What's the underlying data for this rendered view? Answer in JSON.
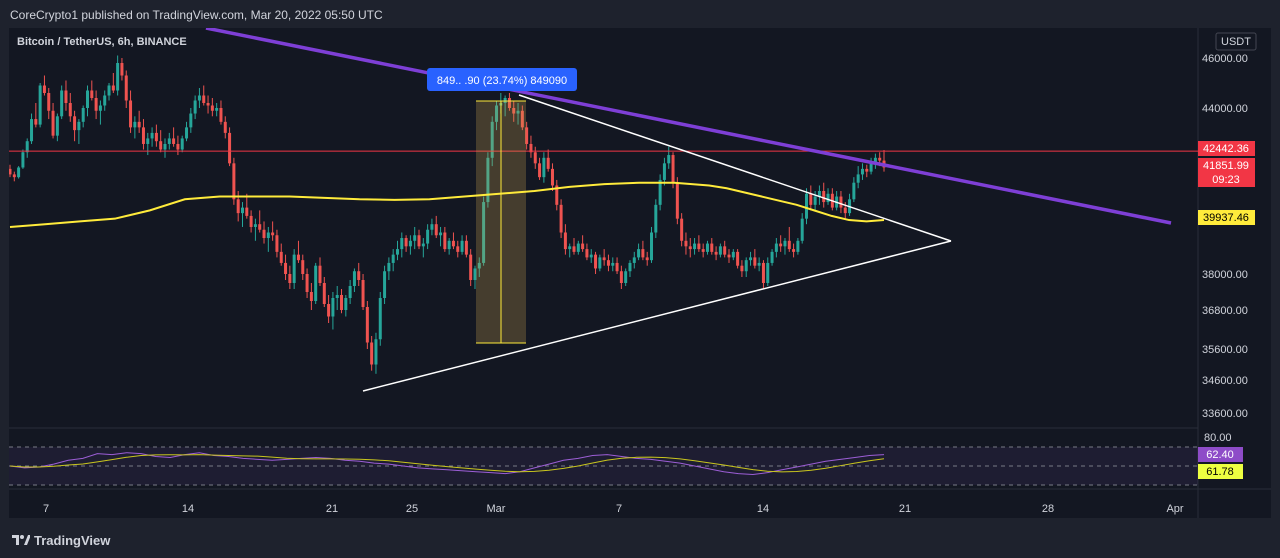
{
  "publish_info": "CoreCrypto1 published on TradingView.com, Mar 20, 2022 05:50 UTC",
  "brand": "TradingView",
  "chart_data": {
    "type": "candlestick",
    "title": "Bitcoin / TetherUS, 6h, BINANCE",
    "currency": "USDT",
    "y_ticks": [
      "46000.00",
      "44000.00",
      "38000.00",
      "36800.00",
      "35600.00",
      "34600.00",
      "33600.00"
    ],
    "x_ticks": [
      "7",
      "14",
      "21",
      "25",
      "Mar",
      "7",
      "14",
      "21",
      "28",
      "Apr"
    ],
    "price_badges": [
      {
        "value": "42442.36",
        "bg": "#f23645",
        "fg": "#ffffff"
      },
      {
        "value": "41851.99",
        "bg": "#f23645",
        "fg": "#ffffff"
      },
      {
        "value": "09:23",
        "bg": "#f23645",
        "fg": "#ffffff"
      },
      {
        "value": "39937.46",
        "bg": "#ffeb3b",
        "fg": "#000000"
      }
    ],
    "measure_label": "849.. .90 (23.74%) 849090",
    "horizontal_line": 42442.36,
    "colors": {
      "up": "#26a69a",
      "down": "#ef5350",
      "ma": "#ffeb3b",
      "trendline": "#7e3fd6",
      "triangle": "#ffffff",
      "rsi": "#9c5ed6",
      "rsi_ma": "#c9c61e",
      "measure_bg": "#2962ff",
      "hline": "#f23645"
    },
    "rsi": {
      "levels": [
        "80.00"
      ],
      "badges": [
        {
          "value": "62.40",
          "bg": "#8e4cc8",
          "fg": "#ffffff"
        },
        {
          "value": "61.78",
          "bg": "#eeff41",
          "fg": "#000000"
        }
      ]
    },
    "candles": [
      [
        41800,
        41950,
        41500,
        41600
      ],
      [
        41600,
        41700,
        41350,
        41500
      ],
      [
        41500,
        41900,
        41450,
        41850
      ],
      [
        41850,
        42500,
        41800,
        42400
      ],
      [
        42400,
        42900,
        42200,
        42800
      ],
      [
        42800,
        43800,
        42700,
        43600
      ],
      [
        43600,
        44200,
        43300,
        43400
      ],
      [
        43400,
        45000,
        43300,
        44900
      ],
      [
        44900,
        45300,
        44500,
        44600
      ],
      [
        44600,
        44800,
        43600,
        43900
      ],
      [
        43900,
        44200,
        42900,
        43000
      ],
      [
        43000,
        43800,
        42800,
        43700
      ],
      [
        43700,
        44900,
        43600,
        44700
      ],
      [
        44700,
        45100,
        43900,
        44200
      ],
      [
        44200,
        44600,
        43500,
        43700
      ],
      [
        43700,
        43900,
        42800,
        43200
      ],
      [
        43200,
        43600,
        42700,
        43500
      ],
      [
        43500,
        44100,
        43300,
        44000
      ],
      [
        44000,
        44900,
        43700,
        44700
      ],
      [
        44700,
        45100,
        44300,
        44400
      ],
      [
        44400,
        44700,
        43600,
        43900
      ],
      [
        43900,
        44300,
        43400,
        44100
      ],
      [
        44100,
        44700,
        43900,
        44500
      ],
      [
        44500,
        45000,
        44300,
        44900
      ],
      [
        44900,
        45400,
        44600,
        44700
      ],
      [
        44700,
        46100,
        44500,
        45800
      ],
      [
        45800,
        46000,
        45100,
        45300
      ],
      [
        45300,
        45500,
        44000,
        44300
      ],
      [
        44300,
        44700,
        43100,
        43300
      ],
      [
        43300,
        43700,
        42900,
        43500
      ],
      [
        43500,
        43900,
        43100,
        43300
      ],
      [
        43300,
        43600,
        42500,
        42700
      ],
      [
        42700,
        43100,
        42300,
        42900
      ],
      [
        42900,
        43300,
        42600,
        43100
      ],
      [
        43100,
        43400,
        42600,
        42800
      ],
      [
        42800,
        43200,
        42400,
        42500
      ],
      [
        42500,
        42900,
        42200,
        42700
      ],
      [
        42700,
        43100,
        42500,
        42900
      ],
      [
        42900,
        43300,
        42600,
        42700
      ],
      [
        42700,
        43000,
        42300,
        42500
      ],
      [
        42500,
        43000,
        42400,
        42900
      ],
      [
        42900,
        43500,
        42800,
        43300
      ],
      [
        43300,
        44000,
        43100,
        43800
      ],
      [
        43800,
        44500,
        43600,
        44300
      ],
      [
        44300,
        44800,
        44000,
        44500
      ],
      [
        44500,
        44900,
        44100,
        44200
      ],
      [
        44200,
        44500,
        43800,
        44100
      ],
      [
        44100,
        44400,
        43700,
        43900
      ],
      [
        43900,
        44200,
        43700,
        44000
      ],
      [
        44000,
        44300,
        43400,
        43500
      ],
      [
        43500,
        43700,
        42900,
        43100
      ],
      [
        43100,
        43300,
        41900,
        42000
      ],
      [
        42000,
        42200,
        40500,
        40700
      ],
      [
        40700,
        41000,
        39900,
        40200
      ],
      [
        40200,
        40600,
        39700,
        40400
      ],
      [
        40400,
        40900,
        40000,
        40100
      ],
      [
        40100,
        40300,
        39500,
        39700
      ],
      [
        39700,
        40000,
        39200,
        39800
      ],
      [
        39800,
        40300,
        39500,
        39600
      ],
      [
        39600,
        39900,
        39100,
        39300
      ],
      [
        39300,
        39700,
        38800,
        39500
      ],
      [
        39500,
        39900,
        39200,
        39400
      ],
      [
        39400,
        39600,
        38600,
        38800
      ],
      [
        38800,
        39100,
        38300,
        38400
      ],
      [
        38400,
        38700,
        37800,
        38000
      ],
      [
        38000,
        38300,
        37500,
        37700
      ],
      [
        37700,
        38900,
        37500,
        38700
      ],
      [
        38700,
        39200,
        38400,
        38500
      ],
      [
        38500,
        38700,
        37800,
        38000
      ],
      [
        38000,
        38200,
        37200,
        37400
      ],
      [
        37400,
        37700,
        36800,
        37100
      ],
      [
        37100,
        38400,
        37000,
        38300
      ],
      [
        38300,
        38600,
        37600,
        37700
      ],
      [
        37700,
        37900,
        36900,
        37000
      ],
      [
        37000,
        37300,
        36400,
        36600
      ],
      [
        36600,
        37400,
        36200,
        37200
      ],
      [
        37200,
        37600,
        36800,
        37300
      ],
      [
        37300,
        37500,
        36700,
        36800
      ],
      [
        36800,
        37300,
        36600,
        37200
      ],
      [
        37200,
        37800,
        37000,
        37600
      ],
      [
        37600,
        38200,
        37400,
        38100
      ],
      [
        38100,
        38400,
        37600,
        37800
      ],
      [
        37800,
        38000,
        36800,
        36900
      ],
      [
        36900,
        37100,
        35600,
        35800
      ],
      [
        35800,
        36000,
        34900,
        35100
      ],
      [
        35100,
        36100,
        34800,
        35900
      ],
      [
        35900,
        37400,
        35700,
        37200
      ],
      [
        37200,
        38300,
        37000,
        38100
      ],
      [
        38100,
        38600,
        37800,
        38400
      ],
      [
        38400,
        38900,
        38100,
        38700
      ],
      [
        38700,
        39200,
        38500,
        38900
      ],
      [
        38900,
        39500,
        38600,
        39300
      ],
      [
        39300,
        39400,
        38800,
        39000
      ],
      [
        39000,
        39400,
        38700,
        39200
      ],
      [
        39200,
        39700,
        38900,
        39400
      ],
      [
        39400,
        39600,
        38900,
        39000
      ],
      [
        39000,
        39300,
        38600,
        39100
      ],
      [
        39100,
        39800,
        38900,
        39600
      ],
      [
        39600,
        40000,
        39400,
        39800
      ],
      [
        39800,
        40100,
        39300,
        39400
      ],
      [
        39400,
        39700,
        39000,
        39500
      ],
      [
        39500,
        39700,
        38800,
        38900
      ],
      [
        38900,
        39300,
        38700,
        39200
      ],
      [
        39200,
        39500,
        38900,
        39000
      ],
      [
        39000,
        39200,
        38600,
        38800
      ],
      [
        38800,
        39400,
        38700,
        39200
      ],
      [
        39200,
        39400,
        38600,
        38700
      ],
      [
        38700,
        38900,
        37600,
        37800
      ],
      [
        37800,
        38300,
        37500,
        38200
      ],
      [
        38200,
        38600,
        37900,
        38400
      ],
      [
        38400,
        40800,
        38300,
        40600
      ],
      [
        40600,
        42400,
        40400,
        42200
      ],
      [
        42200,
        43700,
        41900,
        43500
      ],
      [
        43500,
        44300,
        43200,
        44100
      ],
      [
        44100,
        44600,
        43800,
        44200
      ],
      [
        44200,
        44500,
        43700,
        44400
      ],
      [
        44400,
        44600,
        43900,
        44000
      ],
      [
        44000,
        44300,
        43500,
        43800
      ],
      [
        43800,
        44200,
        43400,
        43900
      ],
      [
        43900,
        44100,
        43200,
        43300
      ],
      [
        43300,
        43500,
        42500,
        42700
      ],
      [
        42700,
        43000,
        42200,
        42400
      ],
      [
        42400,
        42600,
        41800,
        42000
      ],
      [
        42000,
        42200,
        41400,
        41500
      ],
      [
        41500,
        42400,
        41300,
        42200
      ],
      [
        42200,
        42500,
        41700,
        41800
      ],
      [
        41800,
        42000,
        41000,
        41200
      ],
      [
        41200,
        41400,
        40300,
        40500
      ],
      [
        40500,
        40700,
        39300,
        39500
      ],
      [
        39500,
        39800,
        38700,
        38900
      ],
      [
        38900,
        39100,
        38600,
        39000
      ],
      [
        39000,
        39300,
        38700,
        38800
      ],
      [
        38800,
        39200,
        38700,
        39100
      ],
      [
        39100,
        39400,
        38800,
        38900
      ],
      [
        38900,
        39100,
        38500,
        38600
      ],
      [
        38600,
        38900,
        38400,
        38700
      ],
      [
        38700,
        38800,
        38000,
        38200
      ],
      [
        38200,
        38700,
        38100,
        38600
      ],
      [
        38600,
        38900,
        38300,
        38500
      ],
      [
        38500,
        38700,
        38100,
        38300
      ],
      [
        38300,
        38600,
        38100,
        38400
      ],
      [
        38400,
        38600,
        38000,
        38100
      ],
      [
        38100,
        38300,
        37500,
        37700
      ],
      [
        37700,
        38200,
        37600,
        38100
      ],
      [
        38100,
        38500,
        37900,
        38400
      ],
      [
        38400,
        38800,
        38200,
        38600
      ],
      [
        38600,
        39100,
        38500,
        38900
      ],
      [
        38900,
        39200,
        38500,
        38600
      ],
      [
        38600,
        38800,
        38300,
        38500
      ],
      [
        38500,
        39700,
        38400,
        39500
      ],
      [
        39500,
        40700,
        39300,
        40500
      ],
      [
        40500,
        41600,
        40300,
        41400
      ],
      [
        41400,
        42200,
        41200,
        42000
      ],
      [
        42000,
        42600,
        41800,
        42300
      ],
      [
        42300,
        42400,
        41100,
        41300
      ],
      [
        41300,
        41500,
        39800,
        40000
      ],
      [
        40000,
        40200,
        39000,
        39200
      ],
      [
        39200,
        39500,
        38700,
        39000
      ],
      [
        39000,
        39300,
        38600,
        38900
      ],
      [
        38900,
        39300,
        38700,
        39100
      ],
      [
        39100,
        39400,
        38800,
        38900
      ],
      [
        38900,
        39100,
        38600,
        38800
      ],
      [
        38800,
        39200,
        38700,
        39100
      ],
      [
        39100,
        39300,
        38700,
        38800
      ],
      [
        38800,
        39000,
        38500,
        38700
      ],
      [
        38700,
        39100,
        38600,
        39000
      ],
      [
        39000,
        39200,
        38600,
        38700
      ],
      [
        38700,
        38900,
        38400,
        38600
      ],
      [
        38600,
        38900,
        38500,
        38800
      ],
      [
        38800,
        38900,
        38200,
        38300
      ],
      [
        38300,
        38500,
        37900,
        38100
      ],
      [
        38100,
        38600,
        37900,
        38500
      ],
      [
        38500,
        38800,
        38300,
        38600
      ],
      [
        38600,
        38900,
        38200,
        38300
      ],
      [
        38300,
        38600,
        38100,
        38400
      ],
      [
        38400,
        38500,
        37500,
        37700
      ],
      [
        37700,
        38600,
        37600,
        38400
      ],
      [
        38400,
        38900,
        38300,
        38800
      ],
      [
        38800,
        39300,
        38600,
        39100
      ],
      [
        39100,
        39400,
        38800,
        39000
      ],
      [
        39000,
        39300,
        38700,
        39200
      ],
      [
        39200,
        39700,
        38800,
        38900
      ],
      [
        38900,
        39100,
        38600,
        38800
      ],
      [
        38800,
        39300,
        38700,
        39200
      ],
      [
        39200,
        40200,
        39100,
        40000
      ],
      [
        40000,
        41100,
        39800,
        40900
      ],
      [
        40900,
        41200,
        40300,
        40500
      ],
      [
        40500,
        41000,
        40300,
        40800
      ],
      [
        40800,
        41200,
        40500,
        41000
      ],
      [
        41000,
        41300,
        40400,
        40600
      ],
      [
        40600,
        41100,
        40500,
        40900
      ],
      [
        40900,
        41100,
        40300,
        40400
      ],
      [
        40400,
        41000,
        40300,
        40800
      ],
      [
        40800,
        41000,
        40200,
        40400
      ],
      [
        40400,
        40600,
        40000,
        40200
      ],
      [
        40200,
        40900,
        40100,
        40700
      ],
      [
        40700,
        41500,
        40600,
        41300
      ],
      [
        41300,
        41900,
        41100,
        41600
      ],
      [
        41600,
        42000,
        41400,
        41800
      ],
      [
        41800,
        41950,
        41500,
        41700
      ],
      [
        41700,
        42200,
        41600,
        42000
      ],
      [
        42000,
        42350,
        41800,
        42200
      ],
      [
        42200,
        42400,
        41900,
        42100
      ],
      [
        42100,
        42480,
        41700,
        41852
      ]
    ],
    "ma_points": [
      [
        0,
        39700
      ],
      [
        20,
        39800
      ],
      [
        40,
        39900
      ],
      [
        60,
        40000
      ],
      [
        80,
        40300
      ],
      [
        100,
        40700
      ],
      [
        120,
        40800
      ],
      [
        140,
        40800
      ],
      [
        160,
        40800
      ],
      [
        180,
        40750
      ],
      [
        200,
        40700
      ],
      [
        220,
        40680
      ],
      [
        240,
        40700
      ],
      [
        260,
        40800
      ],
      [
        280,
        40900
      ],
      [
        300,
        41000
      ],
      [
        320,
        41150
      ],
      [
        340,
        41250
      ],
      [
        360,
        41300
      ],
      [
        380,
        41300
      ],
      [
        400,
        41200
      ],
      [
        410,
        41100
      ],
      [
        420,
        40950
      ],
      [
        430,
        40800
      ],
      [
        440,
        40650
      ],
      [
        450,
        40500
      ],
      [
        460,
        40300
      ],
      [
        470,
        40100
      ],
      [
        480,
        39950
      ],
      [
        490,
        39900
      ],
      [
        500,
        39950
      ]
    ],
    "rsi_series": [
      50,
      48,
      49,
      52,
      56,
      58,
      63,
      62,
      64,
      63,
      60,
      59,
      62,
      64,
      61,
      60,
      58,
      57,
      56,
      57,
      58,
      59,
      58,
      56,
      55,
      53,
      52,
      50,
      48,
      47,
      46,
      45,
      44,
      43,
      42,
      44,
      48,
      52,
      56,
      58,
      61,
      62,
      60,
      58,
      57,
      55,
      53,
      50,
      47,
      44,
      42,
      41,
      43,
      46,
      49,
      52,
      55,
      57,
      59,
      61,
      62
    ]
  }
}
